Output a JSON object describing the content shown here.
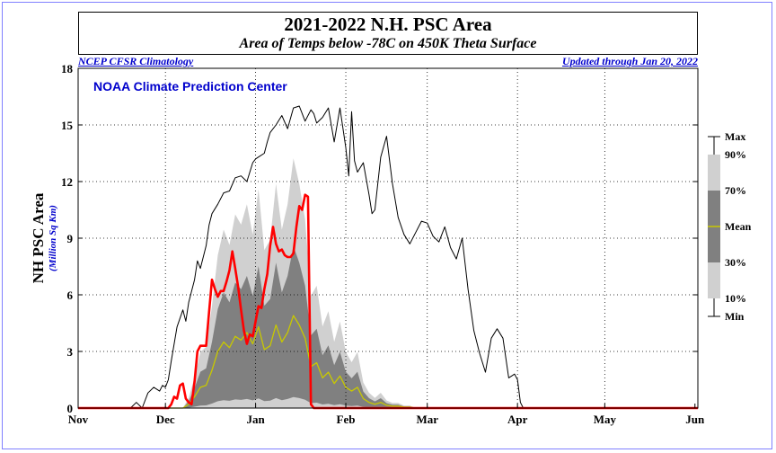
{
  "title": "2021-2022 N.H. PSC Area",
  "subtitle": "Area of Temps below -78C on 450K Theta Surface",
  "left_note": "NCEP CFSR Climatology",
  "right_note": "Updated through Jan 20, 2022",
  "inner_label": "NOAA Climate Prediction Center",
  "chart_data": {
    "type": "area",
    "title": "2021-2022 N.H. PSC Area",
    "ylabel": "NH PSC Area",
    "ylabel_units": "(Million Sq Km)",
    "xlabel": "",
    "ylim": [
      0,
      18
    ],
    "yticks": [
      0,
      3,
      6,
      9,
      12,
      15,
      18
    ],
    "xlim": [
      0,
      213
    ],
    "month_ticks": [
      {
        "label": "Nov",
        "x": 0
      },
      {
        "label": "Dec",
        "x": 30
      },
      {
        "label": "Jan",
        "x": 61
      },
      {
        "label": "Feb",
        "x": 92
      },
      {
        "label": "Mar",
        "x": 120
      },
      {
        "label": "Apr",
        "x": 151
      },
      {
        "label": "May",
        "x": 181
      },
      {
        "label": "Jun",
        "x": 212
      }
    ],
    "grid": true,
    "colors": {
      "p10_90": "#d0d0d0",
      "p30_70": "#808080",
      "mean": "#c8c800",
      "max": "#000000",
      "current": "#ff0000"
    },
    "legend": {
      "position": "right",
      "labels": [
        "Max",
        "90%",
        "70%",
        "Mean",
        "30%",
        "10%",
        "Min"
      ]
    },
    "series": [
      {
        "name": "Max",
        "x": [
          0,
          18,
          20,
          22,
          24,
          26,
          28,
          29,
          30,
          31,
          32,
          34,
          36,
          37,
          38,
          40,
          41,
          42,
          44,
          45,
          46,
          48,
          50,
          52,
          54,
          56,
          58,
          60,
          61,
          62,
          64,
          65,
          66,
          68,
          70,
          72,
          74,
          76,
          78,
          80,
          81,
          82,
          84,
          86,
          88,
          90,
          92,
          93,
          94,
          95,
          96,
          98,
          100,
          101,
          102,
          104,
          106,
          108,
          110,
          112,
          114,
          116,
          118,
          120,
          122,
          124,
          126,
          128,
          130,
          132,
          134,
          136,
          138,
          140,
          142,
          144,
          146,
          148,
          150,
          151,
          152,
          153,
          154,
          155,
          156,
          157,
          213
        ],
        "y": [
          0,
          0,
          0.3,
          0,
          0.8,
          1.1,
          0.9,
          1.2,
          1.1,
          1.5,
          2.5,
          4.3,
          5.2,
          4.6,
          5.6,
          6.8,
          7.8,
          7.4,
          8.6,
          9.7,
          10.3,
          10.8,
          11.4,
          11.5,
          12.2,
          12.3,
          12.0,
          13.0,
          13.2,
          13.3,
          13.5,
          14.1,
          14.6,
          15.0,
          15.5,
          14.8,
          15.9,
          16.0,
          15.2,
          15.8,
          15.6,
          15.1,
          15.4,
          15.9,
          14.1,
          15.9,
          13.8,
          12.3,
          15.7,
          13.1,
          12.5,
          13.0,
          11.3,
          10.3,
          10.5,
          13.3,
          14.4,
          11.9,
          10.1,
          9.2,
          8.7,
          9.3,
          9.9,
          9.8,
          9.1,
          8.8,
          9.6,
          8.5,
          7.9,
          9.0,
          6.3,
          4.1,
          2.9,
          1.9,
          3.7,
          4.2,
          3.7,
          1.6,
          1.8,
          1.5,
          0.3,
          0,
          0,
          0,
          0,
          0,
          0
        ]
      },
      {
        "name": "Mean",
        "x": [
          30,
          32,
          34,
          36,
          38,
          40,
          42,
          44,
          46,
          48,
          50,
          52,
          54,
          56,
          58,
          60,
          62,
          64,
          66,
          68,
          70,
          72,
          74,
          76,
          78,
          80,
          82,
          84,
          86,
          88,
          90,
          92,
          94,
          96,
          98,
          100,
          102,
          104,
          106,
          108,
          110,
          112,
          114,
          116,
          118,
          120,
          122,
          124,
          126
        ],
        "y": [
          0,
          0,
          0,
          0,
          0.2,
          0.6,
          1.1,
          1.2,
          2.0,
          3.0,
          3.5,
          3.2,
          3.8,
          3.6,
          4.0,
          3.4,
          4.3,
          3.1,
          3.3,
          4.4,
          3.5,
          4.0,
          4.9,
          4.4,
          3.7,
          2.2,
          2.4,
          1.6,
          1.9,
          1.3,
          1.7,
          1.1,
          0.9,
          1.1,
          0.5,
          0.3,
          0.2,
          0.3,
          0.15,
          0.1,
          0.1,
          0.05,
          0.05,
          0,
          0,
          0,
          0,
          0,
          0
        ]
      },
      {
        "name": "2021-2022",
        "x": [
          0,
          30,
          31,
          32,
          33,
          34,
          35,
          36,
          37,
          38,
          39,
          40,
          41,
          42,
          43,
          44,
          45,
          46,
          47,
          48,
          49,
          50,
          51,
          52,
          53,
          54,
          55,
          56,
          57,
          58,
          59,
          60,
          61,
          62,
          63,
          64,
          65,
          66,
          67,
          68,
          69,
          70,
          71,
          72,
          73,
          74,
          75,
          76,
          77,
          78,
          79,
          80,
          81,
          213
        ],
        "y": [
          0,
          0,
          0,
          0.2,
          0.6,
          0.5,
          1.2,
          1.3,
          0.5,
          0.3,
          0.2,
          1.4,
          3.0,
          3.3,
          3.3,
          3.3,
          5.1,
          6.8,
          6.3,
          5.9,
          6.2,
          6.2,
          6.7,
          7.3,
          8.3,
          7.4,
          6.4,
          5.2,
          4.1,
          3.4,
          3.9,
          3.8,
          4.6,
          5.4,
          5.3,
          6.3,
          7.1,
          8.6,
          9.6,
          8.7,
          8.3,
          8.4,
          8.1,
          8.0,
          8.0,
          8.2,
          9.6,
          10.7,
          10.5,
          11.3,
          11.2,
          0.2,
          0,
          0
        ]
      }
    ]
  },
  "legend_labels": {
    "max": "Max",
    "p90": "90%",
    "p70": "70%",
    "mean": "Mean",
    "p30": "30%",
    "p10": "10%",
    "min": "Min"
  }
}
